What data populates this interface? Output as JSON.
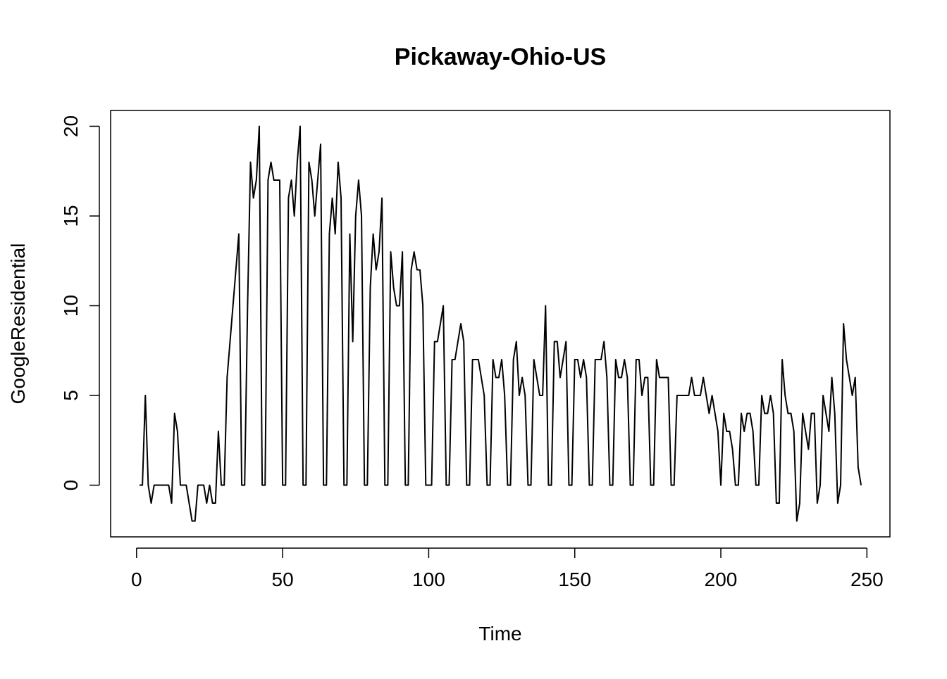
{
  "chart_data": {
    "type": "line",
    "title": "Pickaway-Ohio-US",
    "xlabel": "Time",
    "ylabel": "GoogleResidential",
    "color": "#000000",
    "x": [
      1,
      2,
      3,
      4,
      5,
      6,
      7,
      8,
      9,
      10,
      11,
      12,
      13,
      14,
      15,
      16,
      17,
      18,
      19,
      20,
      21,
      22,
      23,
      24,
      25,
      26,
      27,
      28,
      29,
      30,
      31,
      32,
      33,
      34,
      35,
      36,
      37,
      38,
      39,
      40,
      41,
      42,
      43,
      44,
      45,
      46,
      47,
      48,
      49,
      50,
      51,
      52,
      53,
      54,
      55,
      56,
      57,
      58,
      59,
      60,
      61,
      62,
      63,
      64,
      65,
      66,
      67,
      68,
      69,
      70,
      71,
      72,
      73,
      74,
      75,
      76,
      77,
      78,
      79,
      80,
      81,
      82,
      83,
      84,
      85,
      86,
      87,
      88,
      89,
      90,
      91,
      92,
      93,
      94,
      95,
      96,
      97,
      98,
      99,
      100,
      101,
      102,
      103,
      104,
      105,
      106,
      107,
      108,
      109,
      110,
      111,
      112,
      113,
      114,
      115,
      116,
      117,
      118,
      119,
      120,
      121,
      122,
      123,
      124,
      125,
      126,
      127,
      128,
      129,
      130,
      131,
      132,
      133,
      134,
      135,
      136,
      137,
      138,
      139,
      140,
      141,
      142,
      143,
      144,
      145,
      146,
      147,
      148,
      149,
      150,
      151,
      152,
      153,
      154,
      155,
      156,
      157,
      158,
      159,
      160,
      161,
      162,
      163,
      164,
      165,
      166,
      167,
      168,
      169,
      170,
      171,
      172,
      173,
      174,
      175,
      176,
      177,
      178,
      179,
      180,
      181,
      182,
      183,
      184,
      185,
      186,
      187,
      188,
      189,
      190,
      191,
      192,
      193,
      194,
      195,
      196,
      197,
      198,
      199,
      200,
      201,
      202,
      203,
      204,
      205,
      206,
      207,
      208,
      209,
      210,
      211,
      212,
      213,
      214,
      215,
      216,
      217,
      218,
      219,
      220,
      221,
      222,
      223,
      224,
      225,
      226,
      227,
      228,
      229,
      230,
      231,
      232,
      233,
      234,
      235,
      236,
      237,
      238,
      239,
      240,
      241,
      242,
      243,
      244,
      245,
      246,
      247,
      248
    ],
    "values": [
      0,
      0,
      5,
      0,
      -1,
      0,
      0,
      0,
      0,
      0,
      0,
      -1,
      4,
      3,
      0,
      0,
      0,
      -1,
      -2,
      -2,
      0,
      0,
      0,
      -1,
      0,
      -1,
      -1,
      3,
      0,
      0,
      6,
      8,
      10,
      12,
      14,
      0,
      0,
      10,
      18,
      16,
      17,
      20,
      0,
      0,
      17,
      18,
      17,
      17,
      17,
      0,
      0,
      16,
      17,
      15,
      18,
      20,
      0,
      0,
      18,
      17,
      15,
      17,
      19,
      0,
      0,
      14,
      16,
      14,
      18,
      16,
      0,
      0,
      14,
      8,
      15,
      17,
      15,
      0,
      0,
      11,
      14,
      12,
      13,
      16,
      0,
      0,
      13,
      11,
      10,
      10,
      13,
      0,
      0,
      12,
      13,
      12,
      12,
      10,
      0,
      0,
      0,
      8,
      8,
      9,
      10,
      0,
      0,
      7,
      7,
      8,
      9,
      8,
      0,
      0,
      7,
      7,
      7,
      6,
      5,
      0,
      0,
      7,
      6,
      6,
      7,
      5,
      0,
      0,
      7,
      8,
      5,
      6,
      5,
      0,
      0,
      7,
      6,
      5,
      5,
      10,
      0,
      0,
      8,
      8,
      6,
      7,
      8,
      0,
      0,
      7,
      7,
      6,
      7,
      6,
      0,
      0,
      7,
      7,
      7,
      8,
      6,
      0,
      0,
      7,
      6,
      6,
      7,
      6,
      0,
      0,
      7,
      7,
      5,
      6,
      6,
      0,
      0,
      7,
      6,
      6,
      6,
      6,
      0,
      0,
      5,
      5,
      5,
      5,
      5,
      6,
      5,
      5,
      5,
      6,
      5,
      4,
      5,
      4,
      3,
      0,
      4,
      3,
      3,
      2,
      0,
      0,
      4,
      3,
      4,
      4,
      3,
      0,
      0,
      5,
      4,
      4,
      5,
      4,
      -1,
      -1,
      7,
      5,
      4,
      4,
      3,
      -2,
      -1,
      4,
      3,
      2,
      4,
      4,
      -1,
      0,
      5,
      4,
      3,
      6,
      4,
      -1,
      0,
      9,
      7,
      6,
      5,
      6,
      1,
      0
    ],
    "xlim": [
      -8.88,
      257.88
    ],
    "ylim": [
      -2.88,
      20.88
    ],
    "xticks": [
      0,
      50,
      100,
      150,
      200,
      250
    ],
    "yticks": [
      0,
      5,
      10,
      15,
      20
    ]
  }
}
